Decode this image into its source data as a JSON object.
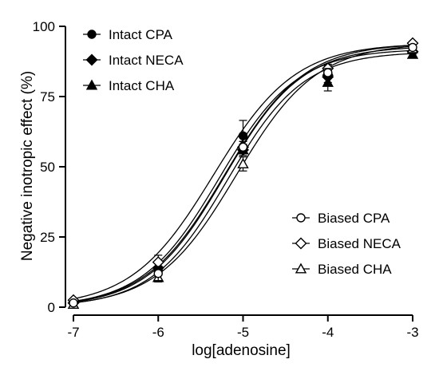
{
  "chart_data": {
    "type": "scatter",
    "title": "",
    "xlabel": "log[adenosine]",
    "ylabel": "Negative inotropic effect (%)",
    "xlim": [
      -7,
      -3
    ],
    "ylim": [
      0,
      100
    ],
    "x_ticks": [
      "-7",
      "-6",
      "-5",
      "-4",
      "-3"
    ],
    "y_ticks": [
      "0",
      "25",
      "50",
      "75",
      "100"
    ],
    "x_tick_values": [
      -7,
      -6,
      -5,
      -4,
      -3
    ],
    "y_tick_values": [
      0,
      25,
      50,
      75,
      100
    ],
    "grid": false,
    "x": [
      -7,
      -6,
      -5,
      -4,
      -3
    ],
    "legends": [
      {
        "placement": "top-left",
        "entries": [
          "Intact CPA",
          "Intact NECA",
          "Intact CHA"
        ]
      },
      {
        "placement": "bottom-right",
        "entries": [
          "Biased CPA",
          "Biased NECA",
          "Biased CHA"
        ]
      }
    ],
    "series": [
      {
        "name": "Intact CPA",
        "marker": "filled-circle",
        "color": "#000000",
        "values": [
          1.5,
          13,
          61,
          83,
          91
        ],
        "errors": [
          0,
          1.5,
          5.5,
          1.5,
          0
        ],
        "ec50_log": -5.22,
        "bottom": 0,
        "top": 93,
        "hill": 0.95
      },
      {
        "name": "Intact NECA",
        "marker": "filled-diamond",
        "color": "#000000",
        "values": [
          1.5,
          14,
          56,
          82,
          91
        ],
        "errors": [
          0,
          1.5,
          2,
          2,
          0
        ],
        "ec50_log": -5.28,
        "bottom": 0,
        "top": 92,
        "hill": 0.95
      },
      {
        "name": "Intact CHA",
        "marker": "filled-triangle",
        "color": "#000000",
        "values": [
          1,
          10.5,
          56,
          80,
          90
        ],
        "errors": [
          0,
          1.5,
          2,
          3,
          0
        ],
        "ec50_log": -5.18,
        "bottom": 0,
        "top": 91,
        "hill": 0.97
      },
      {
        "name": "Biased CPA",
        "marker": "open-circle",
        "color": "#000000",
        "values": [
          1.5,
          12,
          57,
          83.5,
          92.5
        ],
        "errors": [
          0,
          2.5,
          2,
          1.5,
          0
        ],
        "ec50_log": -5.22,
        "bottom": 0,
        "top": 94,
        "hill": 0.93
      },
      {
        "name": "Biased NECA",
        "marker": "open-diamond",
        "color": "#000000",
        "values": [
          2.5,
          16,
          57,
          85,
          94
        ],
        "errors": [
          0,
          2.5,
          2,
          1.5,
          0
        ],
        "ec50_log": -5.35,
        "bottom": 0,
        "top": 94,
        "hill": 0.9
      },
      {
        "name": "Biased CHA",
        "marker": "open-triangle",
        "color": "#000000",
        "values": [
          1,
          10.5,
          51,
          84,
          92
        ],
        "errors": [
          0,
          1.5,
          2.5,
          2,
          0
        ],
        "ec50_log": -5.08,
        "bottom": 0,
        "top": 94,
        "hill": 0.92
      }
    ]
  }
}
